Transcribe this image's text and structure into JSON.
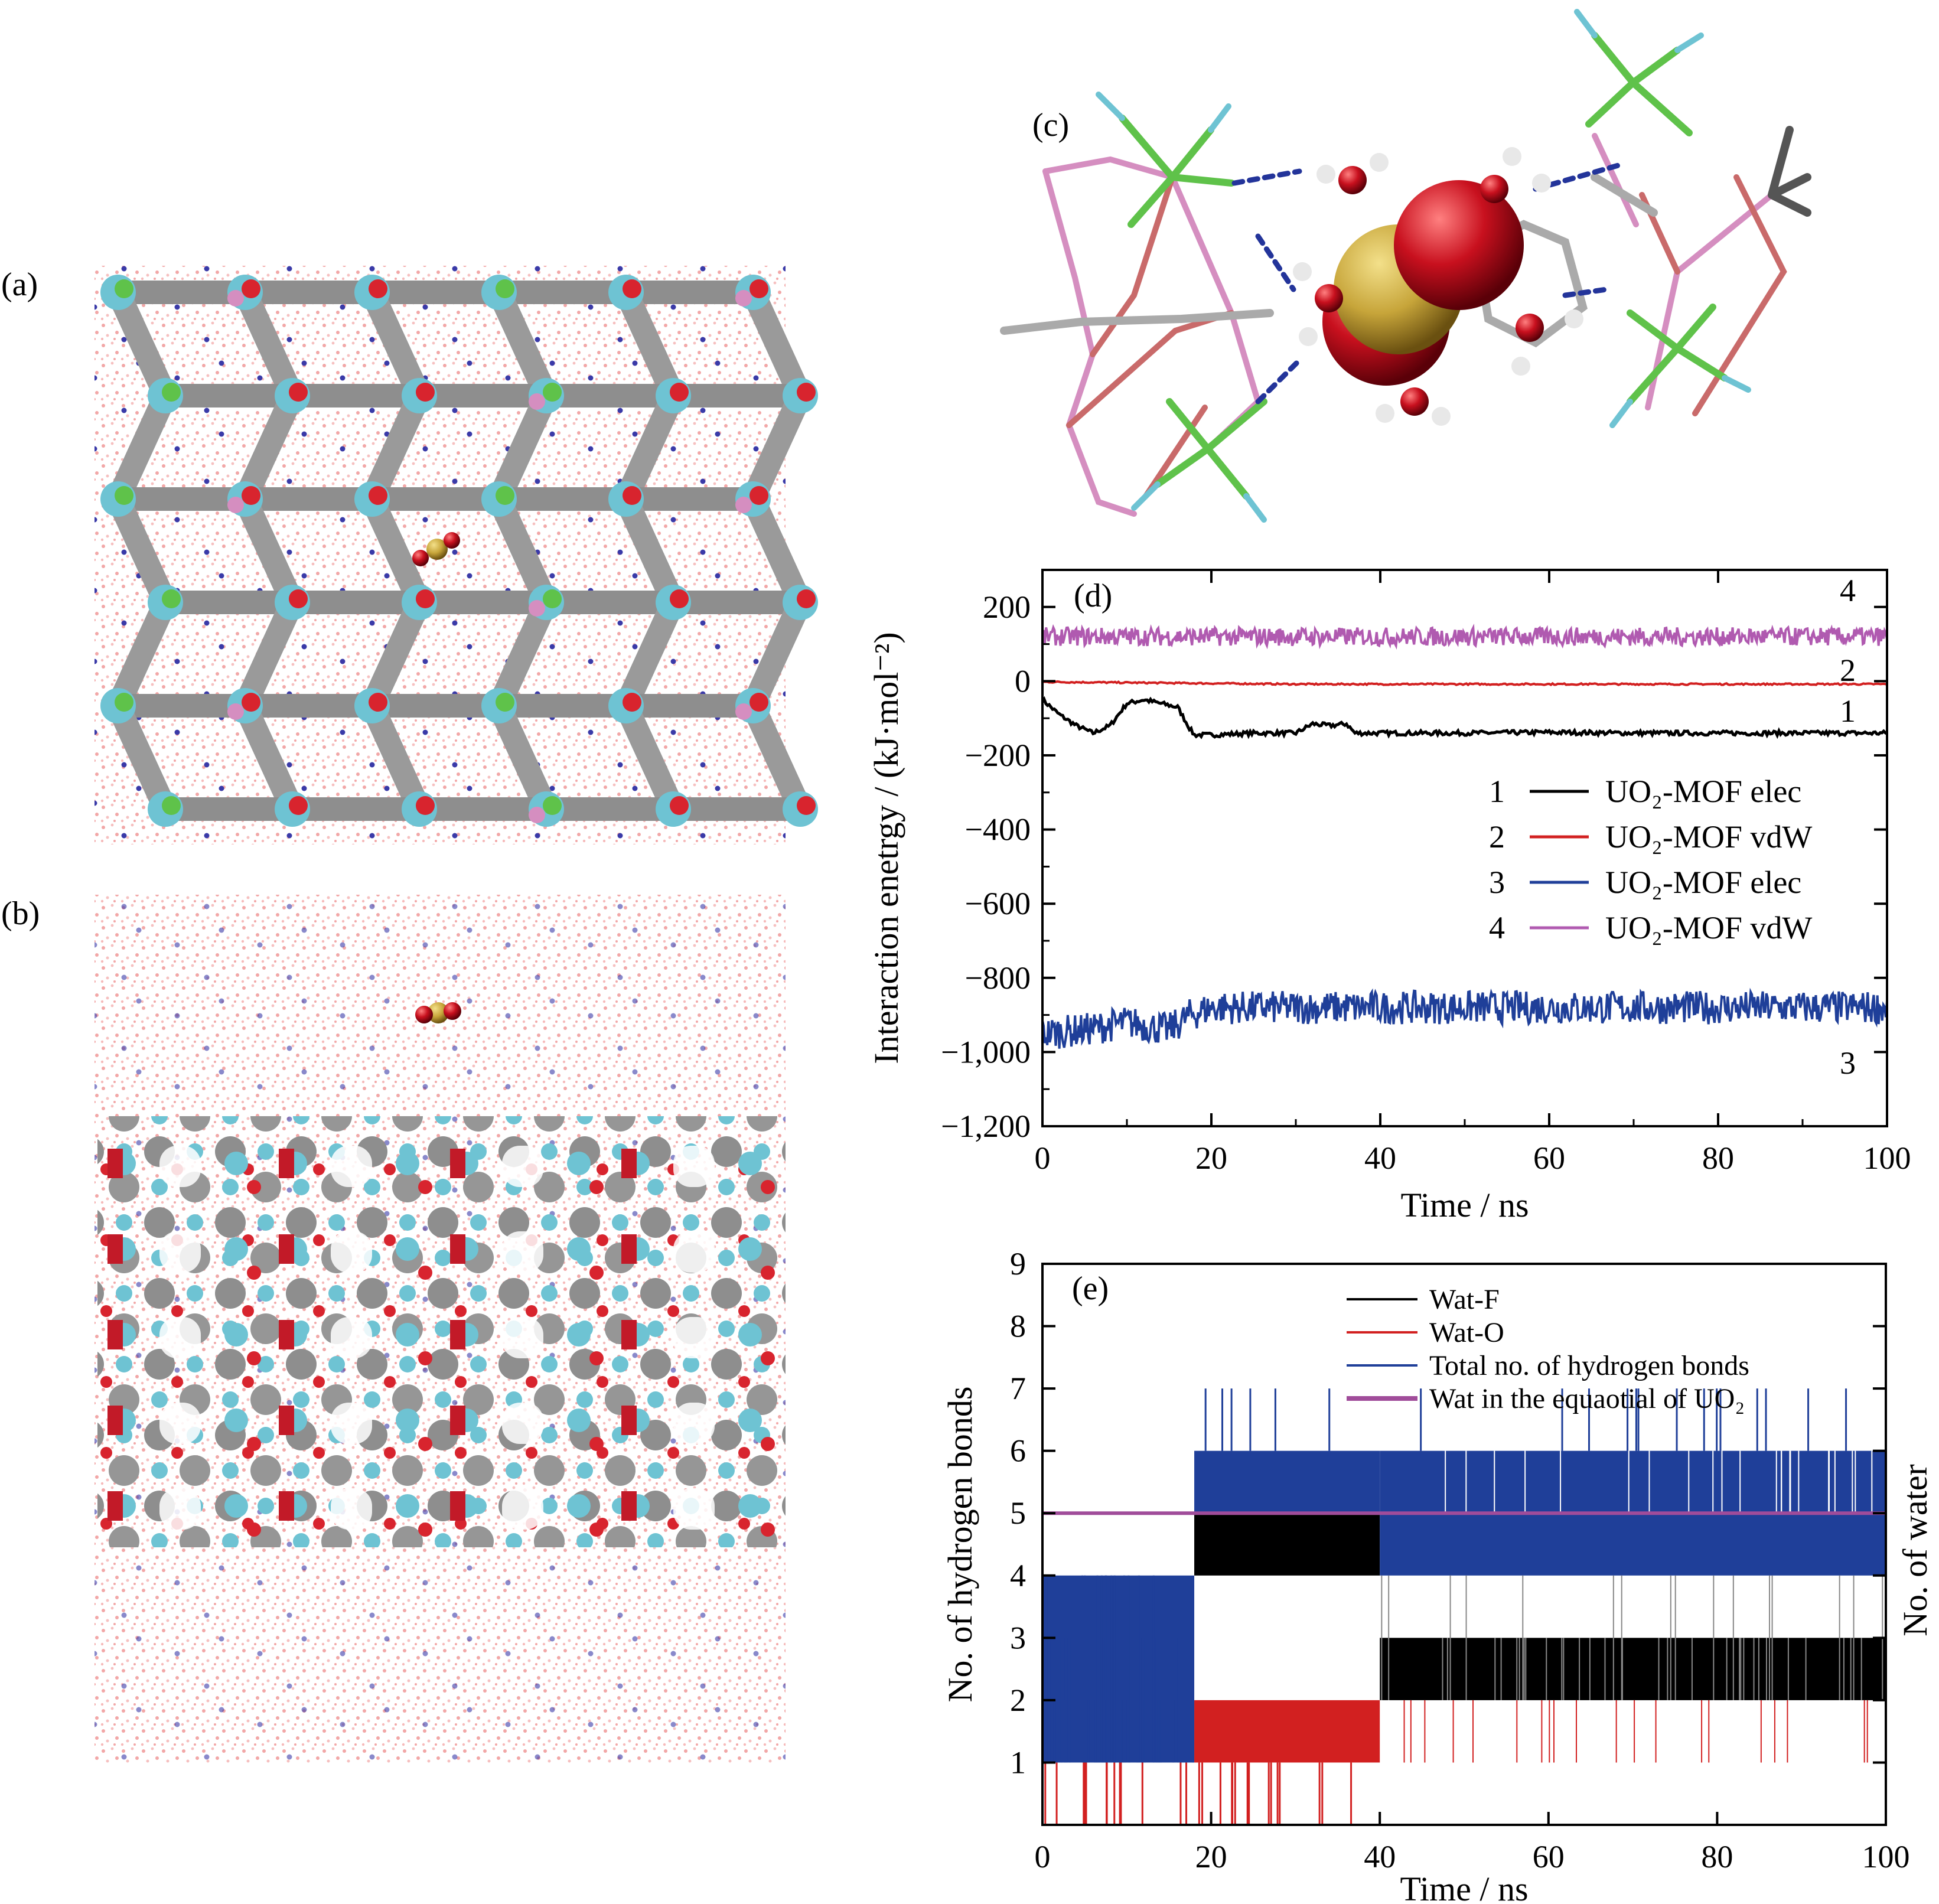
{
  "panels": {
    "a": "(a)",
    "b": "(b)",
    "c": "(c)"
  },
  "colors": {
    "water": "#f2a7a7",
    "ion": "#3a3aa8",
    "framework_gray": "#8e8e8e",
    "framework_cyan": "#6ec3d3",
    "oxygen_red": "#d8242e",
    "fluorine_green": "#5fc24a",
    "uranium_gold": "#c7a53a",
    "phosphorus_pink": "#d58ec0"
  },
  "chart_data": [
    {
      "type": "line",
      "panel": "(d)",
      "xlabel": "Time / ns",
      "ylabel": "Interaction enetrgy / (kJ·mol⁻²)",
      "xlim": [
        0,
        100
      ],
      "ylim": [
        -1200,
        300
      ],
      "xticks": [
        "0",
        "20",
        "40",
        "60",
        "80",
        "100"
      ],
      "yticks": [
        "200",
        "0",
        "−200",
        "−400",
        "−600",
        "−800",
        "−1,000",
        "−1,200"
      ],
      "legend_position": "center-right",
      "series": [
        {
          "id": "1",
          "name": "UO₂-MOF elec",
          "color": "#000000",
          "x": [
            0,
            2,
            4,
            6,
            8,
            10,
            12,
            14,
            16,
            17.5,
            18,
            20,
            25,
            30,
            32,
            34,
            36,
            37,
            40,
            50,
            60,
            70,
            80,
            90,
            100
          ],
          "y": [
            -50,
            -90,
            -120,
            -140,
            -120,
            -60,
            -50,
            -60,
            -70,
            -130,
            -145,
            -145,
            -140,
            -140,
            -115,
            -120,
            -115,
            -140,
            -140,
            -140,
            -138,
            -140,
            -140,
            -140,
            -140
          ]
        },
        {
          "id": "2",
          "name": "UO₂-MOF vdW",
          "color": "#d22020",
          "x": [
            0,
            10,
            20,
            30,
            40,
            50,
            60,
            70,
            80,
            90,
            100
          ],
          "y": [
            -2,
            -4,
            -6,
            -8,
            -8,
            -8,
            -8,
            -8,
            -8,
            -8,
            -8
          ]
        },
        {
          "id": "3",
          "name": "UO₂-MOF elec",
          "color": "#1f3f99",
          "x": [
            0,
            5,
            10,
            15,
            17.5,
            20,
            30,
            40,
            50,
            60,
            70,
            80,
            90,
            100
          ],
          "y": [
            -950,
            -940,
            -920,
            -940,
            -900,
            -880,
            -880,
            -880,
            -880,
            -880,
            -880,
            -880,
            -880,
            -880
          ]
        },
        {
          "id": "4",
          "name": "UO₂-MOF vdW",
          "color": "#b05ab0",
          "x": [
            0,
            10,
            20,
            30,
            40,
            50,
            60,
            70,
            80,
            90,
            100
          ],
          "y": [
            120,
            120,
            120,
            120,
            120,
            120,
            120,
            120,
            120,
            120,
            120
          ]
        }
      ],
      "annotations": [
        "4",
        "2",
        "1",
        "3"
      ]
    },
    {
      "type": "step",
      "panel": "(e)",
      "xlabel": "Time / ns",
      "ylabel": "No. of hydrogen bonds",
      "y2label": "No. of water",
      "xlim": [
        0,
        100
      ],
      "ylim": [
        0,
        9
      ],
      "xticks": [
        "0",
        "20",
        "40",
        "60",
        "80",
        "100"
      ],
      "yticks": [
        "1",
        "2",
        "3",
        "4",
        "5",
        "6",
        "7",
        "8",
        "9"
      ],
      "legend_position": "top-center",
      "series": [
        {
          "name": "Wat-F",
          "color": "#000000",
          "segments": [
            [
              18,
              40,
              4,
              5
            ],
            [
              40,
              100,
              2,
              3
            ]
          ]
        },
        {
          "name": "Wat-O",
          "color": "#d22020",
          "segments": [
            [
              18,
              40,
              1,
              2
            ]
          ]
        },
        {
          "name": "Total no. of hydrogen bonds",
          "color": "#1f3f99",
          "segments": [
            [
              0,
              18,
              1,
              4
            ],
            [
              18,
              40,
              5,
              6
            ],
            [
              40,
              100,
              4,
              6
            ]
          ]
        },
        {
          "name": "Wat in the equaotial of UO₂",
          "color": "#a04c9a",
          "x": [
            0,
            100
          ],
          "y": [
            5,
            5
          ]
        }
      ]
    }
  ]
}
